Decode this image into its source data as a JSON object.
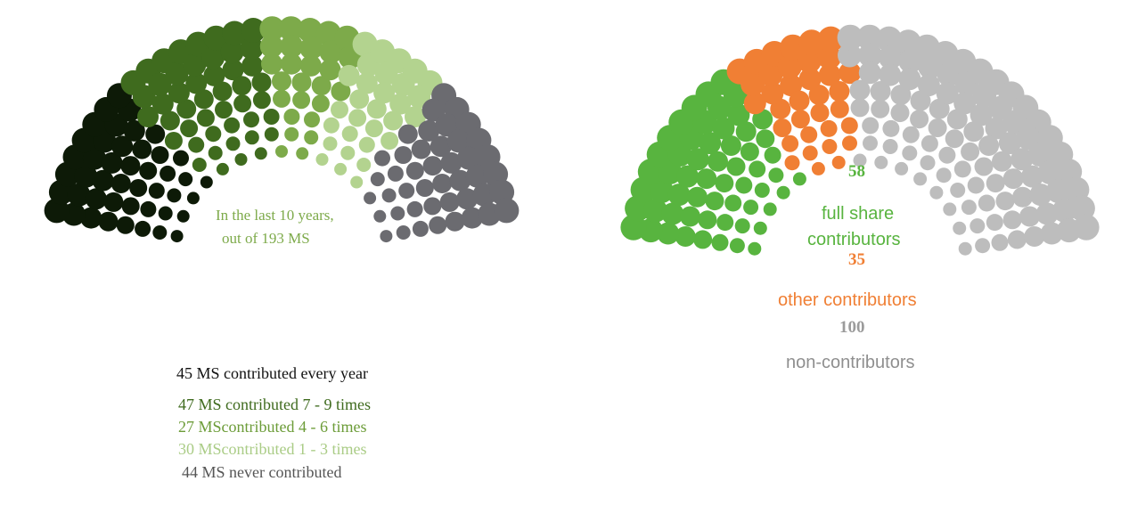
{
  "colors": {
    "every_year": "#0d1a07",
    "seven_nine": "#3f6b1e",
    "four_six": "#7daa4a",
    "one_three": "#b3d38f",
    "never": "#6b6b70",
    "full_share": "#58b43f",
    "other": "#f07f34",
    "non": "#bdbdbd"
  },
  "left_chart": {
    "intro_line1": "In the last 10 years,",
    "intro_line2": "out of 193 MS",
    "legend": [
      {
        "text": "45 MS contributed every year",
        "color": "#111111"
      },
      {
        "text": "47 MS contributed 7 - 9 times",
        "color": "#3f6b1e"
      },
      {
        "text": "27 MScontributed 4 - 6 times",
        "color": "#6c9c38"
      },
      {
        "text": "30 MScontributed 1 - 3 times",
        "color": "#aacc86"
      },
      {
        "text": "44 MS never contributed",
        "color": "#555555"
      }
    ]
  },
  "right_chart": {
    "full_count": "58",
    "full_label_line1": "full share",
    "full_label_line2": "contributors",
    "other_count": "35",
    "other_label": "other contributors",
    "non_count": "100",
    "non_label": "non-contributors"
  },
  "chart_data": [
    {
      "type": "parliament",
      "total": 193,
      "categories": [
        "contributed every year",
        "contributed 7 - 9 times",
        "contributed 4 - 6 times",
        "contributed 1 - 3 times",
        "never contributed"
      ],
      "values": [
        45,
        47,
        27,
        30,
        44
      ],
      "colors": [
        "#0d1a07",
        "#3f6b1e",
        "#7daa4a",
        "#b3d38f",
        "#6b6b70"
      ]
    },
    {
      "type": "parliament",
      "total": 193,
      "categories": [
        "full share contributors",
        "other contributors",
        "non-contributors"
      ],
      "values": [
        58,
        35,
        100
      ],
      "colors": [
        "#58b43f",
        "#f07f34",
        "#bdbdbd"
      ]
    }
  ]
}
